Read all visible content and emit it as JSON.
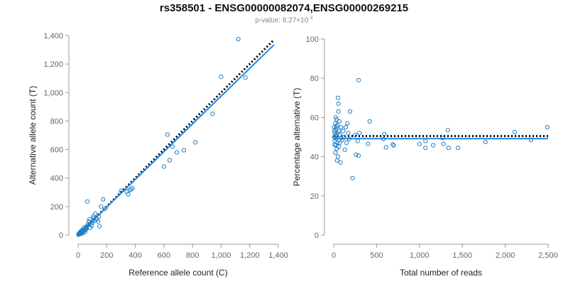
{
  "title": "rs358501 - ENSG00000082074,ENSG00000269215",
  "subtitle_prefix": "p-value: 8.27×10",
  "subtitle_exp": "-3",
  "colors": {
    "point": "#1f7fc6",
    "fit": "#1e88e5",
    "reference": "#000000",
    "axis": "#999999",
    "tick_text": "#666666"
  },
  "chart_data": [
    {
      "type": "scatter",
      "title": "",
      "xlabel": "Reference allele count (C)",
      "ylabel": "Alternative allele count (T)",
      "xlim": [
        0,
        1400
      ],
      "ylim": [
        0,
        1400
      ],
      "xticks": [
        0,
        200,
        400,
        600,
        800,
        1000,
        1200,
        1400
      ],
      "xtick_labels": [
        "0",
        "200",
        "400",
        "600",
        "800",
        "1,000",
        "1,200",
        "1,400"
      ],
      "yticks": [
        0,
        200,
        400,
        600,
        800,
        1000,
        1200,
        1400
      ],
      "ytick_labels": [
        "0",
        "200",
        "400",
        "600",
        "800",
        "1,000",
        "1,200",
        "1,400"
      ],
      "grid": false,
      "fit_line": {
        "x": [
          0,
          1370
        ],
        "y": [
          0,
          1335
        ]
      },
      "reference_line": {
        "x": [
          0,
          1370
        ],
        "y": [
          0,
          1370
        ]
      },
      "points": [
        [
          1120,
          1375
        ],
        [
          1000,
          1110
        ],
        [
          1170,
          1105
        ],
        [
          940,
          850
        ],
        [
          820,
          650
        ],
        [
          625,
          705
        ],
        [
          600,
          480
        ],
        [
          640,
          525
        ],
        [
          660,
          620
        ],
        [
          690,
          580
        ],
        [
          740,
          595
        ],
        [
          350,
          285
        ],
        [
          360,
          315
        ],
        [
          370,
          320
        ],
        [
          380,
          330
        ],
        [
          340,
          305
        ],
        [
          300,
          310
        ],
        [
          175,
          250
        ],
        [
          160,
          200
        ],
        [
          190,
          185
        ],
        [
          145,
          130
        ],
        [
          130,
          110
        ],
        [
          120,
          150
        ],
        [
          115,
          100
        ],
        [
          100,
          90
        ],
        [
          90,
          80
        ],
        [
          80,
          110
        ],
        [
          75,
          95
        ],
        [
          65,
          235
        ],
        [
          60,
          60
        ],
        [
          55,
          50
        ],
        [
          55,
          40
        ],
        [
          50,
          35
        ],
        [
          45,
          55
        ],
        [
          40,
          30
        ],
        [
          38,
          25
        ],
        [
          35,
          40
        ],
        [
          30,
          20
        ],
        [
          28,
          25
        ],
        [
          25,
          15
        ],
        [
          22,
          30
        ],
        [
          20,
          12
        ],
        [
          18,
          20
        ],
        [
          15,
          10
        ],
        [
          12,
          8
        ],
        [
          10,
          15
        ],
        [
          8,
          5
        ],
        [
          5,
          4
        ],
        [
          150,
          60
        ],
        [
          140,
          95
        ],
        [
          110,
          120
        ],
        [
          95,
          65
        ],
        [
          70,
          75
        ],
        [
          85,
          50
        ],
        [
          105,
          130
        ],
        [
          125,
          115
        ],
        [
          60,
          45
        ],
        [
          48,
          20
        ],
        [
          32,
          35
        ],
        [
          26,
          10
        ],
        [
          14,
          18
        ],
        [
          9,
          9
        ],
        [
          6,
          12
        ],
        [
          3,
          2
        ]
      ]
    },
    {
      "type": "scatter",
      "title": "",
      "xlabel": "Total number of reads",
      "ylabel": "Percentage alternative (T)",
      "xlim": [
        0,
        2500
      ],
      "ylim": [
        0,
        100
      ],
      "xticks": [
        0,
        500,
        1000,
        1500,
        2000,
        2500
      ],
      "xtick_labels": [
        "0",
        "500",
        "1,000",
        "1,500",
        "2,000",
        "2,500"
      ],
      "yticks": [
        0,
        20,
        40,
        60,
        80,
        100
      ],
      "ytick_labels": [
        "0",
        "20",
        "40",
        "60",
        "80",
        "100"
      ],
      "grid": false,
      "fit_line": {
        "x": [
          0,
          2500
        ],
        "y": [
          49.2,
          49.2
        ]
      },
      "reference_line": {
        "x": [
          0,
          2500
        ],
        "y": [
          50.5,
          50.5
        ]
      },
      "points": [
        [
          2490,
          55
        ],
        [
          2300,
          48.5
        ],
        [
          2110,
          52.5
        ],
        [
          1770,
          47.5
        ],
        [
          1450,
          44.5
        ],
        [
          1330,
          53.5
        ],
        [
          1340,
          44.5
        ],
        [
          1280,
          46.5
        ],
        [
          1270,
          49.5
        ],
        [
          1160,
          45.8
        ],
        [
          1070,
          48
        ],
        [
          1070,
          44.5
        ],
        [
          1000,
          46.5
        ],
        [
          700,
          45.7
        ],
        [
          690,
          46.2
        ],
        [
          610,
          44.7
        ],
        [
          590,
          51.5
        ],
        [
          580,
          49
        ],
        [
          420,
          58
        ],
        [
          400,
          46.5
        ],
        [
          290,
          79
        ],
        [
          300,
          52
        ],
        [
          280,
          48
        ],
        [
          290,
          40.5
        ],
        [
          260,
          41
        ],
        [
          220,
          29
        ],
        [
          250,
          51
        ],
        [
          190,
          63
        ],
        [
          180,
          49
        ],
        [
          170,
          52
        ],
        [
          160,
          57
        ],
        [
          150,
          47
        ],
        [
          140,
          55
        ],
        [
          130,
          43.5
        ],
        [
          120,
          50
        ],
        [
          110,
          53
        ],
        [
          100,
          48.5
        ],
        [
          90,
          49.5
        ],
        [
          85,
          55
        ],
        [
          80,
          37
        ],
        [
          75,
          51
        ],
        [
          70,
          47
        ],
        [
          65,
          58
        ],
        [
          60,
          53
        ],
        [
          60,
          45
        ],
        [
          55,
          63
        ],
        [
          55,
          67
        ],
        [
          50,
          70
        ],
        [
          50,
          40
        ],
        [
          45,
          52
        ],
        [
          45,
          47
        ],
        [
          40,
          56
        ],
        [
          40,
          38
        ],
        [
          35,
          59
        ],
        [
          35,
          44
        ],
        [
          30,
          55
        ],
        [
          30,
          49
        ],
        [
          28,
          51
        ],
        [
          25,
          60
        ],
        [
          25,
          46
        ],
        [
          22,
          54
        ],
        [
          20,
          57
        ],
        [
          20,
          42
        ],
        [
          18,
          50
        ],
        [
          15,
          52
        ],
        [
          12,
          48
        ],
        [
          10,
          46
        ],
        [
          8,
          53
        ],
        [
          5,
          50
        ],
        [
          4,
          55
        ]
      ]
    }
  ]
}
